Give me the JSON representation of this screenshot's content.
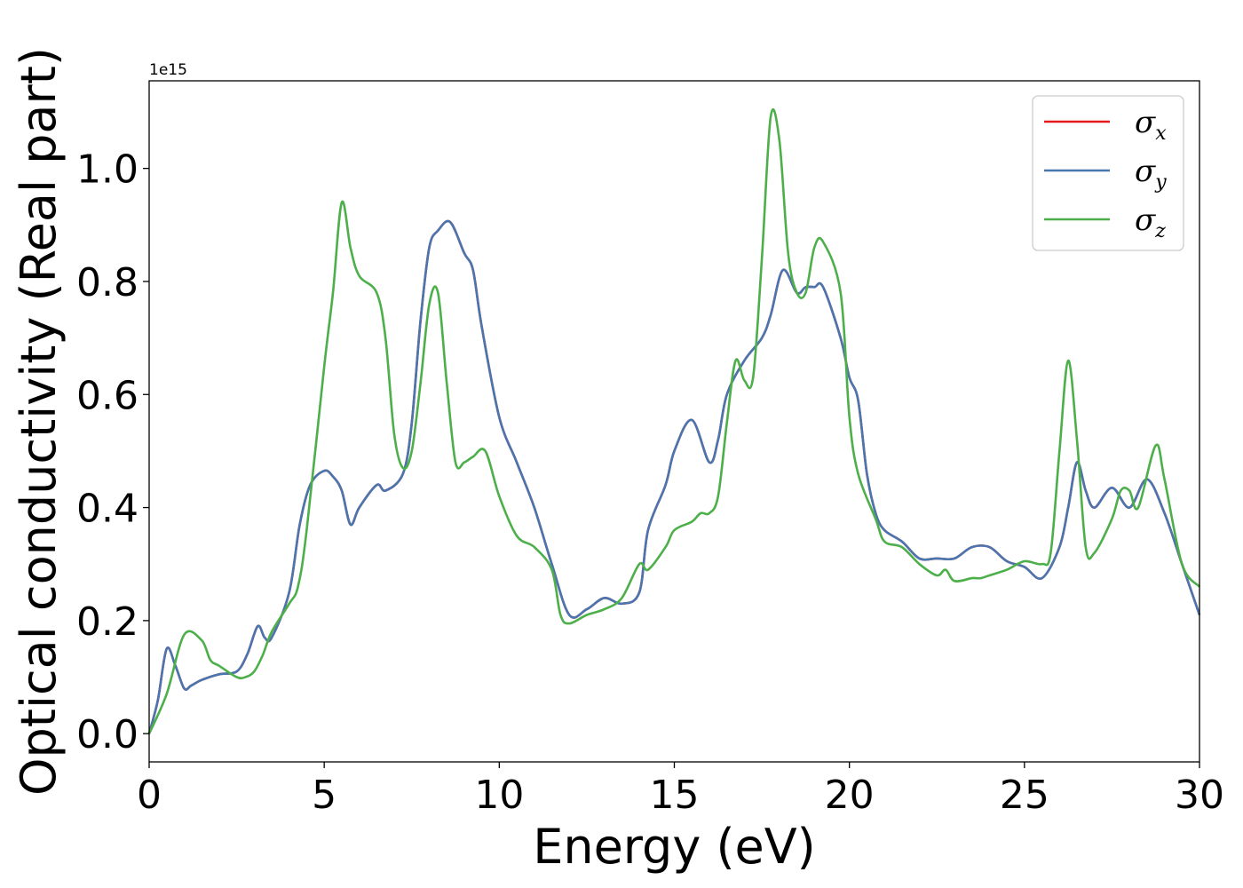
{
  "chart_data": {
    "type": "line",
    "title": "",
    "xlabel": "Energy (eV)",
    "ylabel": "Optical conductivity (Real part)",
    "y_offset_label": "1e15",
    "xlim": [
      0,
      30
    ],
    "ylim": [
      -0.05,
      1.155
    ],
    "xticks": [
      0,
      5,
      10,
      15,
      20,
      25,
      30
    ],
    "xtick_labels": [
      "0",
      "5",
      "10",
      "15",
      "20",
      "25",
      "30"
    ],
    "yticks": [
      0.0,
      0.2,
      0.4,
      0.6,
      0.8,
      1.0
    ],
    "ytick_labels": [
      "0.0",
      "0.2",
      "0.4",
      "0.6",
      "0.8",
      "1.0"
    ],
    "grid": false,
    "legend_position": "top-right",
    "series": [
      {
        "name": "σ_x",
        "legend_symbol": "σ",
        "legend_subscript": "x",
        "color": "#e41a1c",
        "points": [
          [
            0,
            0.0
          ],
          [
            0.25,
            0.06
          ],
          [
            0.5,
            0.15
          ],
          [
            0.75,
            0.12
          ],
          [
            1.0,
            0.08
          ],
          [
            1.2,
            0.085
          ],
          [
            1.5,
            0.095
          ],
          [
            2.0,
            0.105
          ],
          [
            2.5,
            0.11
          ],
          [
            2.8,
            0.14
          ],
          [
            3.1,
            0.19
          ],
          [
            3.3,
            0.17
          ],
          [
            3.5,
            0.17
          ],
          [
            4.0,
            0.25
          ],
          [
            4.3,
            0.37
          ],
          [
            4.6,
            0.44
          ],
          [
            5.0,
            0.465
          ],
          [
            5.25,
            0.455
          ],
          [
            5.5,
            0.43
          ],
          [
            5.75,
            0.37
          ],
          [
            6.0,
            0.4
          ],
          [
            6.5,
            0.44
          ],
          [
            6.75,
            0.43
          ],
          [
            7.25,
            0.46
          ],
          [
            7.5,
            0.55
          ],
          [
            7.75,
            0.73
          ],
          [
            8.0,
            0.86
          ],
          [
            8.25,
            0.89
          ],
          [
            8.6,
            0.905
          ],
          [
            9.0,
            0.85
          ],
          [
            9.25,
            0.82
          ],
          [
            9.5,
            0.72
          ],
          [
            10.0,
            0.56
          ],
          [
            10.5,
            0.48
          ],
          [
            11.0,
            0.4
          ],
          [
            11.5,
            0.3
          ],
          [
            12.0,
            0.21
          ],
          [
            12.5,
            0.22
          ],
          [
            13.0,
            0.24
          ],
          [
            13.5,
            0.23
          ],
          [
            14.0,
            0.25
          ],
          [
            14.25,
            0.36
          ],
          [
            14.75,
            0.44
          ],
          [
            15.0,
            0.5
          ],
          [
            15.5,
            0.555
          ],
          [
            16.0,
            0.48
          ],
          [
            16.25,
            0.52
          ],
          [
            16.5,
            0.6
          ],
          [
            17.0,
            0.66
          ],
          [
            17.5,
            0.7
          ],
          [
            17.75,
            0.74
          ],
          [
            18.1,
            0.82
          ],
          [
            18.5,
            0.78
          ],
          [
            18.75,
            0.79
          ],
          [
            19.0,
            0.79
          ],
          [
            19.25,
            0.79
          ],
          [
            19.75,
            0.7
          ],
          [
            20.0,
            0.63
          ],
          [
            20.25,
            0.59
          ],
          [
            20.5,
            0.46
          ],
          [
            20.75,
            0.39
          ],
          [
            21.0,
            0.36
          ],
          [
            21.5,
            0.34
          ],
          [
            22.0,
            0.31
          ],
          [
            22.5,
            0.31
          ],
          [
            23.0,
            0.31
          ],
          [
            23.5,
            0.33
          ],
          [
            24.0,
            0.33
          ],
          [
            24.5,
            0.305
          ],
          [
            25.0,
            0.295
          ],
          [
            25.5,
            0.275
          ],
          [
            26.0,
            0.33
          ],
          [
            26.25,
            0.4
          ],
          [
            26.5,
            0.48
          ],
          [
            26.75,
            0.43
          ],
          [
            27.0,
            0.4
          ],
          [
            27.5,
            0.435
          ],
          [
            28.0,
            0.4
          ],
          [
            28.5,
            0.45
          ],
          [
            29.0,
            0.39
          ],
          [
            29.5,
            0.3
          ],
          [
            30.0,
            0.21
          ]
        ]
      },
      {
        "name": "σ_y",
        "legend_symbol": "σ",
        "legend_subscript": "y",
        "color": "#4a76b0",
        "points": [
          [
            0,
            0.0
          ],
          [
            0.25,
            0.06
          ],
          [
            0.5,
            0.15
          ],
          [
            0.75,
            0.12
          ],
          [
            1.0,
            0.08
          ],
          [
            1.2,
            0.085
          ],
          [
            1.5,
            0.095
          ],
          [
            2.0,
            0.105
          ],
          [
            2.5,
            0.11
          ],
          [
            2.8,
            0.14
          ],
          [
            3.1,
            0.19
          ],
          [
            3.3,
            0.17
          ],
          [
            3.5,
            0.17
          ],
          [
            4.0,
            0.25
          ],
          [
            4.3,
            0.37
          ],
          [
            4.6,
            0.44
          ],
          [
            5.0,
            0.465
          ],
          [
            5.25,
            0.455
          ],
          [
            5.5,
            0.43
          ],
          [
            5.75,
            0.37
          ],
          [
            6.0,
            0.4
          ],
          [
            6.5,
            0.44
          ],
          [
            6.75,
            0.43
          ],
          [
            7.25,
            0.46
          ],
          [
            7.5,
            0.55
          ],
          [
            7.75,
            0.73
          ],
          [
            8.0,
            0.86
          ],
          [
            8.25,
            0.89
          ],
          [
            8.6,
            0.905
          ],
          [
            9.0,
            0.85
          ],
          [
            9.25,
            0.82
          ],
          [
            9.5,
            0.72
          ],
          [
            10.0,
            0.56
          ],
          [
            10.5,
            0.48
          ],
          [
            11.0,
            0.4
          ],
          [
            11.5,
            0.3
          ],
          [
            12.0,
            0.21
          ],
          [
            12.5,
            0.22
          ],
          [
            13.0,
            0.24
          ],
          [
            13.5,
            0.23
          ],
          [
            14.0,
            0.25
          ],
          [
            14.25,
            0.36
          ],
          [
            14.75,
            0.44
          ],
          [
            15.0,
            0.5
          ],
          [
            15.5,
            0.555
          ],
          [
            16.0,
            0.48
          ],
          [
            16.25,
            0.52
          ],
          [
            16.5,
            0.6
          ],
          [
            17.0,
            0.66
          ],
          [
            17.5,
            0.7
          ],
          [
            17.75,
            0.74
          ],
          [
            18.1,
            0.82
          ],
          [
            18.5,
            0.78
          ],
          [
            18.75,
            0.79
          ],
          [
            19.0,
            0.79
          ],
          [
            19.25,
            0.79
          ],
          [
            19.75,
            0.7
          ],
          [
            20.0,
            0.63
          ],
          [
            20.25,
            0.59
          ],
          [
            20.5,
            0.46
          ],
          [
            20.75,
            0.39
          ],
          [
            21.0,
            0.36
          ],
          [
            21.5,
            0.34
          ],
          [
            22.0,
            0.31
          ],
          [
            22.5,
            0.31
          ],
          [
            23.0,
            0.31
          ],
          [
            23.5,
            0.33
          ],
          [
            24.0,
            0.33
          ],
          [
            24.5,
            0.305
          ],
          [
            25.0,
            0.295
          ],
          [
            25.5,
            0.275
          ],
          [
            26.0,
            0.33
          ],
          [
            26.25,
            0.4
          ],
          [
            26.5,
            0.48
          ],
          [
            26.75,
            0.43
          ],
          [
            27.0,
            0.4
          ],
          [
            27.5,
            0.435
          ],
          [
            28.0,
            0.4
          ],
          [
            28.5,
            0.45
          ],
          [
            29.0,
            0.39
          ],
          [
            29.5,
            0.3
          ],
          [
            30.0,
            0.21
          ]
        ]
      },
      {
        "name": "σ_z",
        "legend_symbol": "σ",
        "legend_subscript": "z",
        "color": "#4daf4a",
        "points": [
          [
            0,
            0.0
          ],
          [
            0.5,
            0.07
          ],
          [
            1.0,
            0.175
          ],
          [
            1.5,
            0.165
          ],
          [
            1.75,
            0.13
          ],
          [
            2.0,
            0.12
          ],
          [
            2.5,
            0.1
          ],
          [
            2.75,
            0.1
          ],
          [
            3.0,
            0.11
          ],
          [
            3.25,
            0.14
          ],
          [
            3.5,
            0.18
          ],
          [
            4.0,
            0.23
          ],
          [
            4.25,
            0.26
          ],
          [
            4.5,
            0.36
          ],
          [
            5.0,
            0.65
          ],
          [
            5.25,
            0.78
          ],
          [
            5.5,
            0.94
          ],
          [
            5.75,
            0.86
          ],
          [
            6.0,
            0.81
          ],
          [
            6.5,
            0.78
          ],
          [
            6.75,
            0.7
          ],
          [
            7.0,
            0.53
          ],
          [
            7.25,
            0.47
          ],
          [
            7.5,
            0.5
          ],
          [
            7.75,
            0.62
          ],
          [
            8.0,
            0.76
          ],
          [
            8.25,
            0.78
          ],
          [
            8.5,
            0.62
          ],
          [
            8.75,
            0.48
          ],
          [
            9.0,
            0.48
          ],
          [
            9.25,
            0.49
          ],
          [
            9.6,
            0.5
          ],
          [
            10.0,
            0.42
          ],
          [
            10.5,
            0.35
          ],
          [
            11.0,
            0.33
          ],
          [
            11.5,
            0.29
          ],
          [
            11.75,
            0.21
          ],
          [
            12.0,
            0.195
          ],
          [
            12.5,
            0.21
          ],
          [
            13.0,
            0.22
          ],
          [
            13.5,
            0.24
          ],
          [
            14.0,
            0.3
          ],
          [
            14.25,
            0.29
          ],
          [
            14.75,
            0.33
          ],
          [
            15.0,
            0.36
          ],
          [
            15.5,
            0.375
          ],
          [
            15.75,
            0.39
          ],
          [
            16.0,
            0.39
          ],
          [
            16.25,
            0.42
          ],
          [
            16.5,
            0.55
          ],
          [
            16.75,
            0.66
          ],
          [
            17.0,
            0.625
          ],
          [
            17.25,
            0.63
          ],
          [
            17.5,
            0.84
          ],
          [
            17.75,
            1.09
          ],
          [
            18.0,
            1.05
          ],
          [
            18.25,
            0.85
          ],
          [
            18.5,
            0.78
          ],
          [
            18.75,
            0.78
          ],
          [
            19.0,
            0.86
          ],
          [
            19.25,
            0.87
          ],
          [
            19.75,
            0.78
          ],
          [
            20.0,
            0.56
          ],
          [
            20.25,
            0.46
          ],
          [
            20.75,
            0.38
          ],
          [
            21.0,
            0.34
          ],
          [
            21.5,
            0.33
          ],
          [
            22.0,
            0.3
          ],
          [
            22.5,
            0.28
          ],
          [
            22.75,
            0.29
          ],
          [
            23.0,
            0.27
          ],
          [
            23.5,
            0.275
          ],
          [
            23.75,
            0.275
          ],
          [
            24.0,
            0.28
          ],
          [
            24.5,
            0.29
          ],
          [
            25.0,
            0.305
          ],
          [
            25.5,
            0.3
          ],
          [
            25.75,
            0.32
          ],
          [
            26.0,
            0.5
          ],
          [
            26.25,
            0.66
          ],
          [
            26.5,
            0.52
          ],
          [
            26.75,
            0.33
          ],
          [
            27.0,
            0.32
          ],
          [
            27.5,
            0.38
          ],
          [
            27.75,
            0.43
          ],
          [
            28.0,
            0.43
          ],
          [
            28.25,
            0.4
          ],
          [
            28.75,
            0.51
          ],
          [
            29.0,
            0.45
          ],
          [
            29.5,
            0.3
          ],
          [
            30.0,
            0.26
          ]
        ]
      }
    ]
  }
}
